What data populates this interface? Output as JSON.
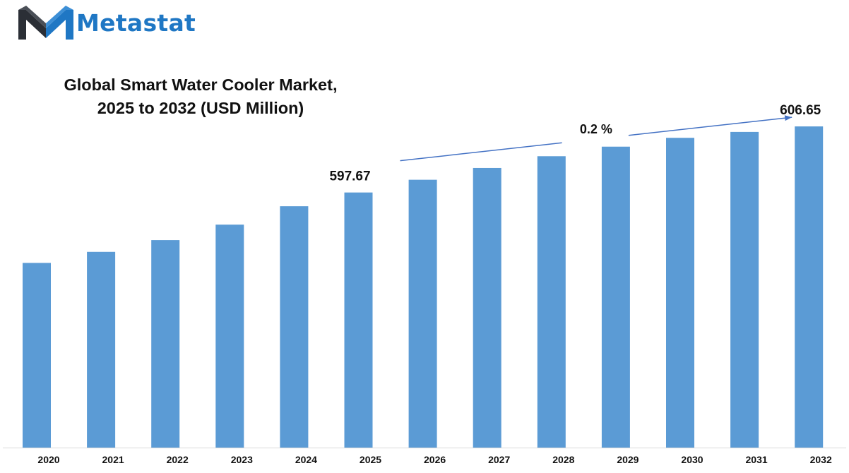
{
  "brand": {
    "name": "Metastat",
    "logo_icon": "m-logo-icon",
    "color": "#1f77c4"
  },
  "chart_data": {
    "type": "bar",
    "title": "Global Smart Water Cooler Market, 2025 to 2032 (USD Million)",
    "title_lines": [
      "Global Smart Water Cooler Market,",
      "2025 to 2032 (USD Million)"
    ],
    "categories": [
      "2020",
      "2021",
      "2022",
      "2023",
      "2024",
      "2025",
      "2026",
      "2027",
      "2028",
      "2029",
      "2030",
      "2031",
      "2032"
    ],
    "values": [
      588.1,
      589.6,
      591.2,
      593.3,
      595.8,
      597.67,
      599.4,
      601.0,
      602.6,
      603.9,
      605.1,
      605.9,
      606.65
    ],
    "data_labels": [
      {
        "category": "2025",
        "text": "597.67"
      },
      {
        "category": "2032",
        "text": "606.65"
      }
    ],
    "annotation": {
      "text": "0.2 %",
      "from": "2025",
      "to": "2032"
    },
    "bar_color": "#5b9bd5",
    "arrow_color": "#4472c4",
    "ylim": [
      563,
      608
    ],
    "grid": false,
    "y_axis_visible": false
  }
}
